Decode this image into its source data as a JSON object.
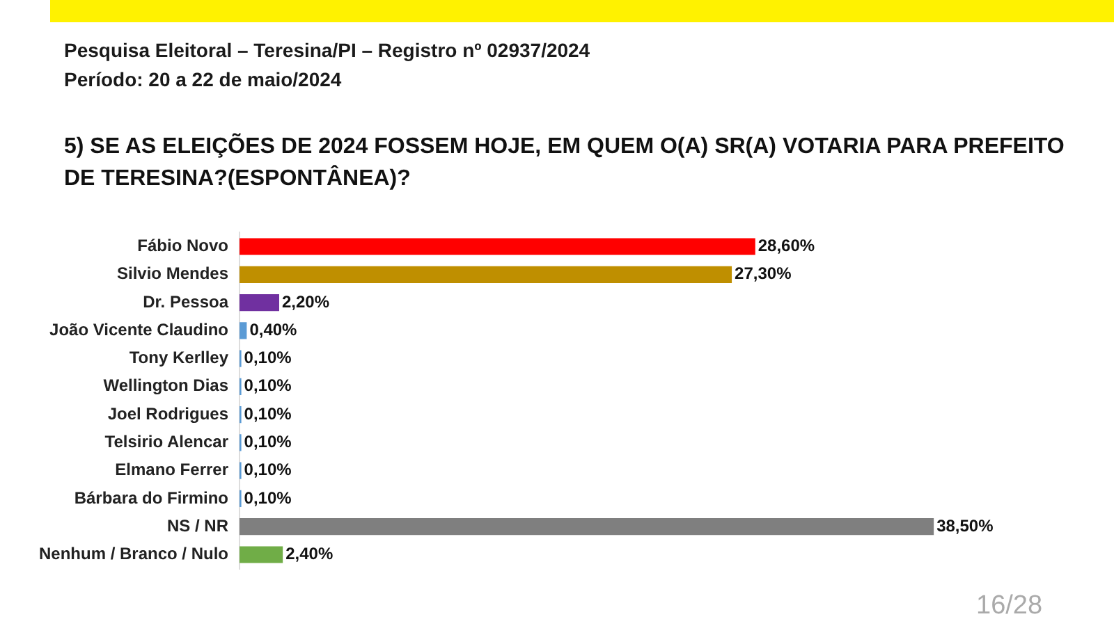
{
  "chart_data": {
    "type": "bar",
    "orientation": "horizontal",
    "title": "5) SE AS ELEIÇÕES DE 2024 FOSSEM HOJE, EM QUEM O(A) SR(A) VOTARIA PARA PREFEITO DE TERESINA?(ESPONTÂNEA)?",
    "subtitle": "Pesquisa Eleitoral – Teresina/PI – Registro nº 02937/2024",
    "annotations": [
      "Período: 20 a 22 de maio/2024",
      "16/28"
    ],
    "categories": [
      "Fábio Novo",
      "Silvio Mendes",
      "Dr. Pessoa",
      "João Vicente Claudino",
      "Tony Kerlley",
      "Wellington Dias",
      "Joel Rodrigues",
      "Telsirio Alencar",
      "Elmano Ferrer",
      "Bárbara do Firmino",
      "NS / NR",
      "Nenhum / Branco / Nulo"
    ],
    "values": [
      28.6,
      27.3,
      2.2,
      0.4,
      0.1,
      0.1,
      0.1,
      0.1,
      0.1,
      0.1,
      38.5,
      2.4
    ],
    "value_labels": [
      "28,60%",
      "27,30%",
      "2,20%",
      "0,40%",
      "0,10%",
      "0,10%",
      "0,10%",
      "0,10%",
      "0,10%",
      "0,10%",
      "38,50%",
      "2,40%"
    ],
    "colors": [
      "#ff0000",
      "#bf8f00",
      "#7030a0",
      "#5b9bd5",
      "#5b9bd5",
      "#5b9bd5",
      "#5b9bd5",
      "#5b9bd5",
      "#5b9bd5",
      "#5b9bd5",
      "#7f7f7f",
      "#70ad47"
    ]
  }
}
